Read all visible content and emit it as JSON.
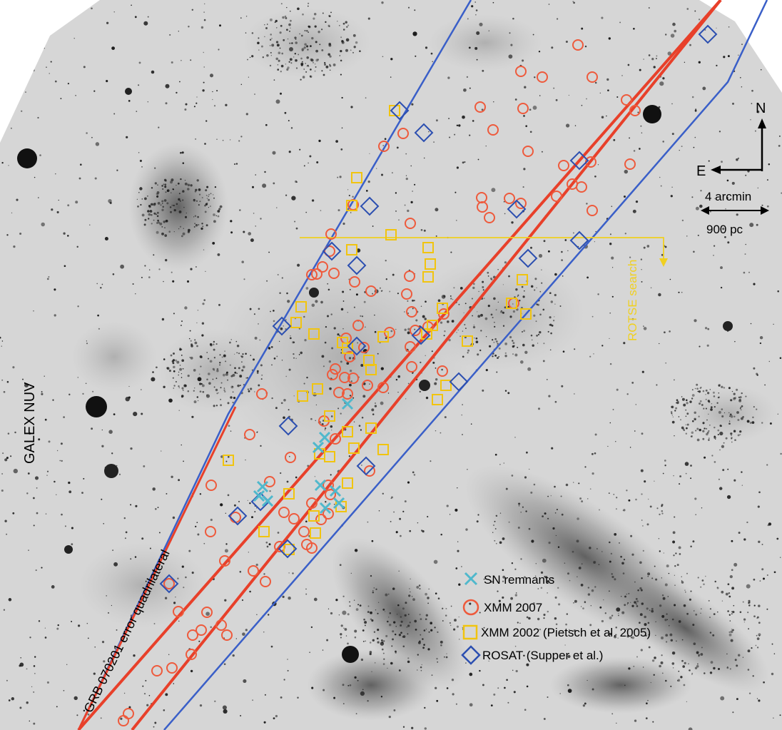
{
  "labels": {
    "galex": "GALEX NUV",
    "grb": "GRB 070201 error quadrilateral",
    "rotse": "ROTSE search",
    "north": "N",
    "east": "E",
    "scale_arcmin": "4 arcmin",
    "scale_pc": "900 pc"
  },
  "legend": [
    {
      "symbol": "x-mark",
      "label": "SN remnants",
      "color": "#4fb8cc"
    },
    {
      "symbol": "circle",
      "label": "XMM 2007",
      "color": "#ee5a3c"
    },
    {
      "symbol": "square",
      "label": "XMM 2002 (Pietsch et al. 2005)",
      "color": "#f1c40f"
    },
    {
      "symbol": "diamond",
      "label": "ROSAT (Supper et al.)",
      "color": "#2c4fb0"
    }
  ],
  "colors": {
    "red_line": "#e8402a",
    "blue_line": "#3a5fc8",
    "yellow": "#f0d020",
    "sky_bg": "#d4d4d4"
  }
}
